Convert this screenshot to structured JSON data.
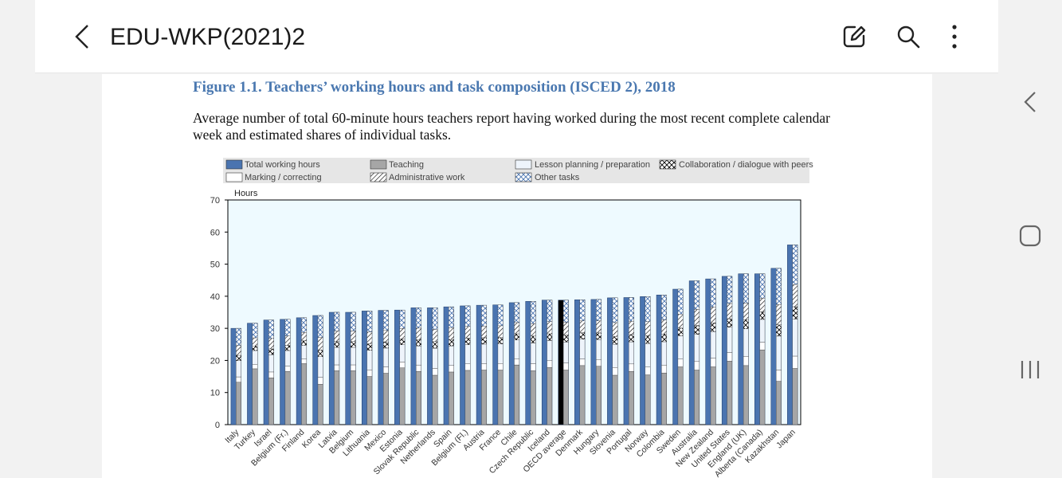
{
  "header": {
    "title": "EDU-WKP(2021)2"
  },
  "icons": {
    "back": "chevron-left-icon",
    "edit": "edit-icon",
    "search": "search-icon",
    "more": "more-vert-icon",
    "rail_back": "chevron-left-icon",
    "rail_home": "home-icon",
    "rail_recents": "recents-icon"
  },
  "figure": {
    "title": "Figure 1.1. Teachers’ working hours and task composition (ISCED 2), 2018",
    "subtitle": "Average number of total 60-minute hours teachers report having worked during the most recent complete calendar week and estimated shares of individual tasks."
  },
  "colors": {
    "plot_bg": "#eefaff",
    "bar": "#4a74b0",
    "teaching": "#a6a6a6",
    "oecd": "#000000"
  },
  "chart_data": {
    "type": "bar",
    "ylabel": "Hours",
    "ylim": [
      0,
      70
    ],
    "yticks": [
      0,
      10,
      20,
      30,
      40,
      50,
      60,
      70
    ],
    "legend": [
      "Total working hours",
      "Teaching",
      "Lesson planning / preparation",
      "Collaboration / dialogue with peers",
      "Marking / correcting",
      "Administrative work",
      "Other tasks"
    ],
    "categories": [
      "Italy",
      "Turkey",
      "Israel",
      "Belgium (Fr.)",
      "Finland",
      "Korea",
      "Latvia",
      "Belgium",
      "Lithuania",
      "Mexico",
      "Estonia",
      "Slovak Republic",
      "Netherlands",
      "Spain",
      "Belgium (Fl.)",
      "Austria",
      "France",
      "Chile",
      "Czech Republic",
      "Iceland",
      "OECD average",
      "Denmark",
      "Hungary",
      "Slovenia",
      "Portugal",
      "Norway",
      "Colombia",
      "Sweden",
      "Australia",
      "New Zealand",
      "United States",
      "England (UK)",
      "Alberta (Canada)",
      "Kazakhstan",
      "Japan"
    ],
    "series": [
      {
        "name": "Total working hours",
        "values": [
          30,
          31.6,
          32.6,
          32.8,
          33.3,
          34,
          35,
          35,
          35.4,
          35.6,
          35.7,
          36.4,
          36.4,
          36.7,
          37,
          37.2,
          37.3,
          38,
          38.4,
          38.8,
          38.8,
          38.9,
          39,
          39.5,
          39.6,
          39.9,
          40.4,
          42.2,
          44.8,
          45.4,
          46.2,
          47,
          47,
          48.7,
          56
        ]
      },
      {
        "name": "Teaching",
        "values": [
          13.2,
          17.4,
          14.6,
          16.6,
          19,
          12.6,
          16.8,
          16.8,
          15,
          16,
          17.7,
          16.6,
          15.4,
          16.4,
          16.9,
          17,
          17,
          18.6,
          16.8,
          17.8,
          17,
          18.4,
          18.2,
          15.4,
          16.6,
          15.5,
          16.1,
          18,
          17,
          18,
          19.8,
          18.4,
          23.3,
          13.5,
          17.5
        ]
      }
    ],
    "highlight_category": "OECD average"
  }
}
